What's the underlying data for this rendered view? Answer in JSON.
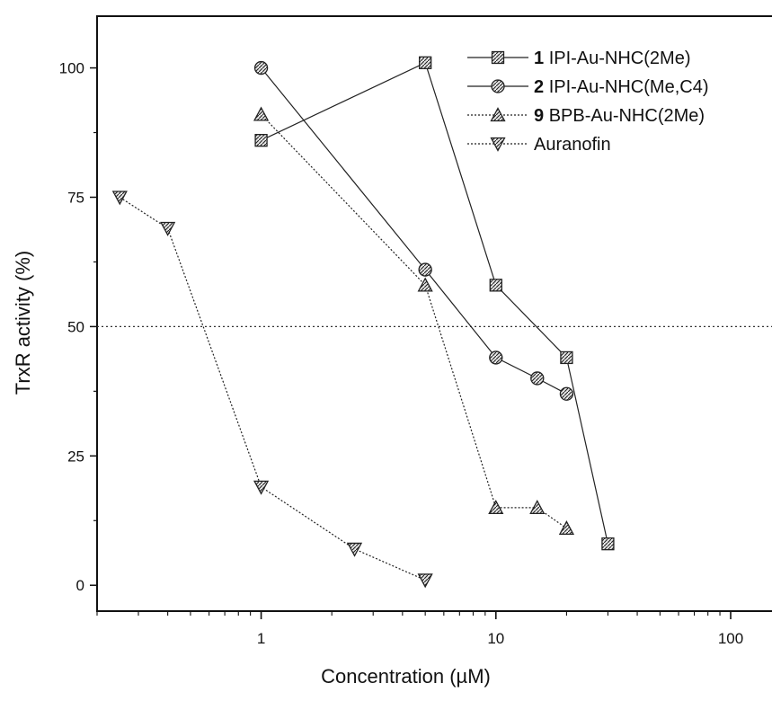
{
  "chart_data": {
    "type": "scatter",
    "xlabel": "Concentration (µM)",
    "ylabel": "TrxR activity (%)",
    "xscale": "log",
    "xlim": [
      0.2,
      150
    ],
    "ylim": [
      -5,
      110
    ],
    "x_ticks": [
      1,
      10,
      100
    ],
    "x_tick_labels": [
      "1",
      "10",
      "100"
    ],
    "y_ticks": [
      0,
      25,
      50,
      75,
      100
    ],
    "y_tick_labels": [
      "0",
      "25",
      "50",
      "75",
      "100"
    ],
    "reference_line": {
      "y": 50,
      "style": "dotted"
    },
    "legend_position": "top-right",
    "series": [
      {
        "number": "1",
        "name": "IPI-Au-NHC(2Me)",
        "marker": "square",
        "line": "solid",
        "x": [
          1,
          5,
          10,
          20,
          30
        ],
        "y": [
          86,
          101,
          58,
          44,
          8
        ]
      },
      {
        "number": "2",
        "name": "IPI-Au-NHC(Me,C4)",
        "marker": "circle",
        "line": "solid",
        "x": [
          1,
          5,
          10,
          15,
          20
        ],
        "y": [
          100,
          61,
          44,
          40,
          37
        ]
      },
      {
        "number": "9",
        "name": "BPB-Au-NHC(2Me)",
        "marker": "triangle-up",
        "line": "dotted",
        "x": [
          1,
          5,
          10,
          15,
          20
        ],
        "y": [
          91,
          58,
          15,
          15,
          11
        ]
      },
      {
        "number": "",
        "name": "Auranofin",
        "marker": "triangle-down",
        "line": "dotted",
        "x": [
          0.25,
          0.4,
          1,
          2.5,
          5
        ],
        "y": [
          75,
          69,
          19,
          7,
          1
        ]
      }
    ]
  }
}
